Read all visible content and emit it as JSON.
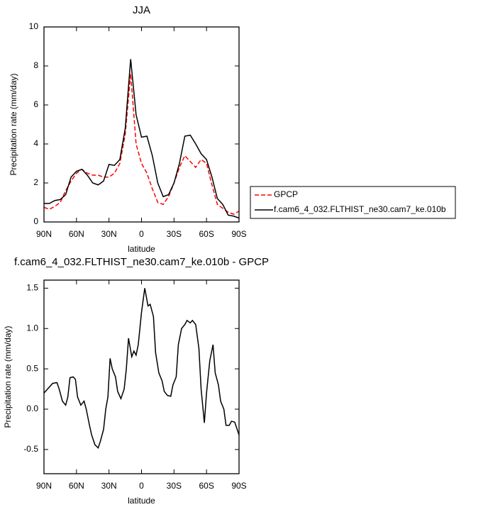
{
  "chart_data": [
    {
      "type": "line",
      "title": "JJA",
      "x_label": "latitude",
      "y_label": "Precipitation rate (mm/day)",
      "x": [
        90,
        85,
        80,
        75,
        70,
        65,
        60,
        55,
        50,
        45,
        40,
        35,
        30,
        25,
        20,
        15,
        10,
        5,
        0,
        -5,
        -10,
        -15,
        -20,
        -25,
        -30,
        -35,
        -40,
        -45,
        -50,
        -55,
        -60,
        -65,
        -70,
        -75,
        -80,
        -85,
        -90
      ],
      "series": [
        {
          "name": "GPCP",
          "color": "#ff0000",
          "style": "dashed",
          "values": [
            0.75,
            0.65,
            0.8,
            1.0,
            1.6,
            2.1,
            2.5,
            2.7,
            2.5,
            2.4,
            2.4,
            2.3,
            2.3,
            2.5,
            3.0,
            4.5,
            7.6,
            4.0,
            3.0,
            2.5,
            1.7,
            1.0,
            0.9,
            1.3,
            2.0,
            2.8,
            3.4,
            3.1,
            2.8,
            3.2,
            3.0,
            1.9,
            0.9,
            0.7,
            0.5,
            0.4,
            0.55
          ]
        },
        {
          "name": "f.cam6_4_032.FLTHIST_ne30.cam7_ke.010b",
          "color": "#000000",
          "style": "solid",
          "values": [
            0.95,
            0.95,
            1.1,
            1.15,
            1.4,
            2.3,
            2.6,
            2.7,
            2.4,
            2.0,
            1.9,
            2.1,
            2.95,
            2.9,
            3.2,
            4.8,
            8.35,
            5.5,
            4.35,
            4.4,
            3.4,
            2.0,
            1.3,
            1.4,
            2.0,
            3.0,
            4.4,
            4.45,
            4.0,
            3.5,
            3.2,
            2.3,
            1.2,
            0.9,
            0.35,
            0.3,
            0.2
          ]
        }
      ],
      "xlim": [
        90,
        -90
      ],
      "xticks": [
        {
          "value": 90,
          "label": "90N"
        },
        {
          "value": 60,
          "label": "60N"
        },
        {
          "value": 30,
          "label": "30N"
        },
        0,
        {
          "value": -30,
          "label": "30S"
        },
        {
          "value": -60,
          "label": "60S"
        },
        {
          "value": -90,
          "label": "90S"
        }
      ],
      "ylim": [
        0,
        10
      ],
      "yticks": [
        0,
        2,
        4,
        6,
        8,
        10
      ],
      "legend": "outside-right"
    },
    {
      "type": "line",
      "title": "f.cam6_4_032.FLTHIST_ne30.cam7_ke.010b - GPCP",
      "x_label": "latitude",
      "y_label": "Precipitation rate (mm/day)",
      "x": [
        90,
        82,
        78,
        76,
        73,
        70,
        68,
        66,
        63,
        61,
        59,
        56,
        53,
        51,
        48,
        46,
        43,
        40,
        38,
        35,
        33,
        31,
        29,
        27,
        24,
        22,
        19,
        16,
        14,
        12,
        9,
        7,
        5,
        3,
        0,
        -3,
        -6,
        -8,
        -11,
        -13,
        -16,
        -19,
        -21,
        -24,
        -27,
        -29,
        -32,
        -34,
        -37,
        -40,
        -42,
        -45,
        -47,
        -50,
        -53,
        -55,
        -58,
        -60,
        -63,
        -66,
        -68,
        -71,
        -73,
        -76,
        -78,
        -81,
        -83,
        -86,
        -90
      ],
      "series": [
        {
          "color": "#000000",
          "values": [
            0.2,
            0.32,
            0.33,
            0.25,
            0.1,
            0.05,
            0.15,
            0.39,
            0.4,
            0.37,
            0.15,
            0.05,
            0.1,
            0.0,
            -0.2,
            -0.32,
            -0.44,
            -0.48,
            -0.4,
            -0.25,
            0.0,
            0.15,
            0.63,
            0.5,
            0.4,
            0.22,
            0.13,
            0.25,
            0.5,
            0.88,
            0.65,
            0.72,
            0.67,
            0.8,
            1.2,
            1.5,
            1.28,
            1.3,
            1.15,
            0.7,
            0.45,
            0.35,
            0.22,
            0.17,
            0.16,
            0.3,
            0.4,
            0.8,
            1.0,
            1.05,
            1.1,
            1.07,
            1.1,
            1.05,
            0.75,
            0.25,
            -0.17,
            0.2,
            0.6,
            0.8,
            0.45,
            0.3,
            0.1,
            0.0,
            -0.2,
            -0.2,
            -0.15,
            -0.16,
            -0.32
          ]
        }
      ],
      "xlim": [
        90,
        -90
      ],
      "xticks": [
        {
          "value": 90,
          "label": "90N"
        },
        {
          "value": 60,
          "label": "60N"
        },
        {
          "value": 30,
          "label": "30N"
        },
        0,
        {
          "value": -30,
          "label": "30S"
        },
        {
          "value": -60,
          "label": "60S"
        },
        {
          "value": -90,
          "label": "90S"
        }
      ],
      "ylim": [
        -0.8,
        1.6
      ],
      "yticks": [
        -0.5,
        {
          "value": 0,
          "label": "0.0"
        },
        0.5,
        {
          "value": 1,
          "label": "1.0"
        },
        1.5
      ]
    }
  ]
}
